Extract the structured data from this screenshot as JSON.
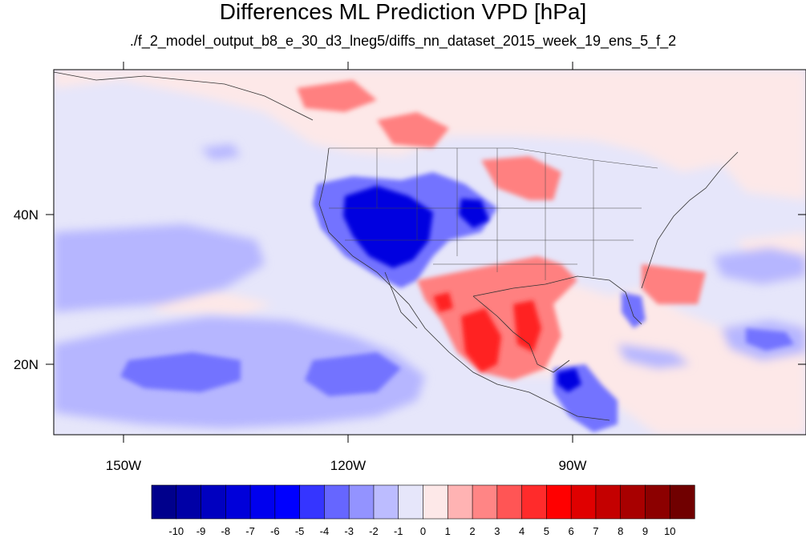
{
  "title": "Differences ML Prediction VPD [hPa]",
  "subtitle": "./f_2_model_output_b8_e_30_d3_lneg5/diffs_nn_dataset_2015_week_19_ens_5_f_2",
  "map": {
    "lon_labels": [
      "150W",
      "120W",
      "90W"
    ],
    "lat_labels": [
      "40N",
      "20N"
    ]
  },
  "colorbar": {
    "labels": [
      "-10",
      "-9",
      "-8",
      "-7",
      "-6",
      "-5",
      "-4",
      "-3",
      "-2",
      "-1",
      "0",
      "1",
      "2",
      "3",
      "4",
      "5",
      "6",
      "7",
      "8",
      "9",
      "10"
    ],
    "colors": [
      "#00008c",
      "#0000a6",
      "#0000c0",
      "#0000da",
      "#0000ee",
      "#0000ff",
      "#3535ff",
      "#6666ff",
      "#9393ff",
      "#bcbcff",
      "#e6e6fa",
      "#fde8e8",
      "#ffb3b3",
      "#ff8585",
      "#ff5555",
      "#ff2b2b",
      "#ff0000",
      "#e00000",
      "#c40000",
      "#a80000",
      "#8c0000",
      "#700000"
    ]
  }
}
